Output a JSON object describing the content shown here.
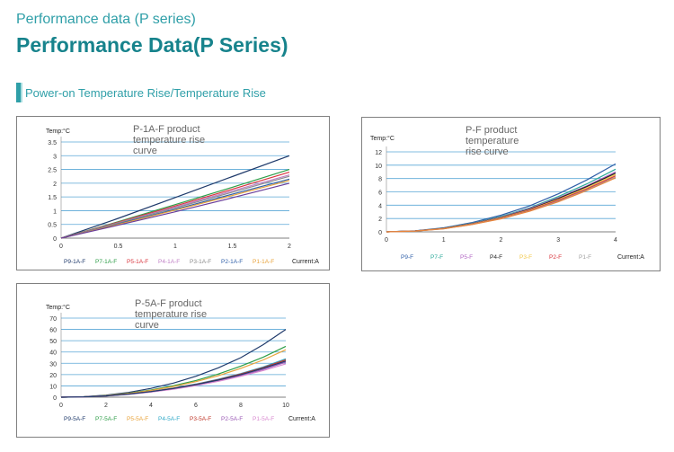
{
  "page": {
    "eyebrow": "Performance data (P series)",
    "title": "Performance Data(P Series)",
    "section": "Power-on Temperature Rise/Temperature Rise"
  },
  "chart_data": [
    {
      "type": "line",
      "title": "P-1A-F product temperature rise curve",
      "ylabel": "Temp:°C",
      "xlabel": "Current:A",
      "xlim": [
        0,
        2
      ],
      "ylim": [
        0,
        3.5
      ],
      "xticks": [
        "0",
        "0.5",
        "1",
        "1.5",
        "2"
      ],
      "yticks": [
        "0",
        "0.5",
        "1",
        "1.5",
        "2",
        "2.5",
        "3",
        "3.5"
      ],
      "grid": "horizontal",
      "legend_position": "bottom",
      "x": [
        0,
        0.5,
        1,
        1.5,
        2
      ],
      "series": [
        {
          "name": "P9-1A-F",
          "color": "#1f3a6b",
          "values": [
            0,
            0.72,
            1.48,
            2.24,
            3.0
          ]
        },
        {
          "name": "P7-1A-F",
          "color": "#2e9e48",
          "values": [
            0,
            0.6,
            1.22,
            1.85,
            2.5
          ]
        },
        {
          "name": "P5-1A-F",
          "color": "#d9363e",
          "values": [
            0,
            0.58,
            1.17,
            1.78,
            2.4
          ]
        },
        {
          "name": "P4-1A-F",
          "color": "#c080c6",
          "values": [
            0,
            0.56,
            1.13,
            1.72,
            2.3
          ]
        },
        {
          "name": "P3-1A-F",
          "color": "#8c8c8c",
          "values": [
            0,
            0.55,
            1.1,
            1.67,
            2.25
          ]
        },
        {
          "name": "P2-1A-F",
          "color": "#2f5fa8",
          "values": [
            0,
            0.52,
            1.05,
            1.6,
            2.15
          ]
        },
        {
          "name": "P1-1A-F",
          "color": "#e8a33a",
          "values": [
            0,
            0.5,
            1.02,
            1.55,
            2.1
          ]
        },
        {
          "color": "#6a3d9a",
          "values": [
            0,
            0.47,
            0.96,
            1.47,
            2.0
          ]
        }
      ]
    },
    {
      "type": "line",
      "title": "P-F product temperature rise curve",
      "ylabel": "Temp:°C",
      "xlabel": "Current:A",
      "xlim": [
        0,
        4
      ],
      "ylim": [
        0,
        12
      ],
      "xticks": [
        "0",
        "1",
        "2",
        "3",
        "4"
      ],
      "yticks": [
        "0",
        "2",
        "4",
        "6",
        "8",
        "10",
        "12"
      ],
      "grid": "horizontal",
      "legend_position": "bottom",
      "x": [
        0,
        0.5,
        1,
        1.5,
        2,
        2.5,
        3,
        3.5,
        4
      ],
      "series": [
        {
          "name": "P9-F",
          "color": "#2f5fa8",
          "values": [
            0,
            0.15,
            0.6,
            1.4,
            2.5,
            3.9,
            5.7,
            7.8,
            10.2
          ]
        },
        {
          "name": "P7-F",
          "color": "#2aa898",
          "values": [
            0,
            0.14,
            0.55,
            1.3,
            2.3,
            3.6,
            5.3,
            7.2,
            9.4
          ]
        },
        {
          "name": "P5-F",
          "color": "#b266c4",
          "values": [
            0,
            0.13,
            0.53,
            1.25,
            2.2,
            3.5,
            5.1,
            6.9,
            9.0
          ]
        },
        {
          "name": "P4-F",
          "color": "#222222",
          "values": [
            0,
            0.13,
            0.52,
            1.22,
            2.15,
            3.4,
            5.0,
            6.8,
            8.8
          ]
        },
        {
          "name": "P3-F",
          "color": "#f2c94c",
          "values": [
            0,
            0.12,
            0.5,
            1.18,
            2.1,
            3.3,
            4.85,
            6.6,
            8.6
          ]
        },
        {
          "name": "P2-F",
          "color": "#d9363e",
          "values": [
            0,
            0.12,
            0.49,
            1.15,
            2.05,
            3.25,
            4.75,
            6.45,
            8.4
          ]
        },
        {
          "name": "P1-F",
          "color": "#a0a0a0",
          "values": [
            0,
            0.11,
            0.47,
            1.12,
            2.0,
            3.15,
            4.6,
            6.3,
            8.2
          ]
        },
        {
          "color": "#e8843a",
          "values": [
            0,
            0.11,
            0.46,
            1.1,
            1.95,
            3.1,
            4.5,
            6.2,
            8.1
          ]
        }
      ]
    },
    {
      "type": "line",
      "title": "P-5A-F product temperature rise curve",
      "ylabel": "Temp:°C",
      "xlabel": "Current:A",
      "xlim": [
        0,
        10
      ],
      "ylim": [
        0,
        70
      ],
      "xticks": [
        "0",
        "2",
        "4",
        "6",
        "8",
        "10"
      ],
      "yticks": [
        "0",
        "10",
        "20",
        "30",
        "40",
        "50",
        "60",
        "70"
      ],
      "grid": "horizontal",
      "legend_position": "bottom",
      "x": [
        0,
        1,
        2,
        3,
        4,
        5,
        6,
        7,
        8,
        9,
        10
      ],
      "series": [
        {
          "name": "P9-5A-F",
          "color": "#1f3a6b",
          "values": [
            0,
            0.4,
            1.8,
            4.2,
            7.8,
            12.5,
            18.5,
            26,
            35,
            46.5,
            60
          ]
        },
        {
          "name": "P7-5A-F",
          "color": "#2e9e48",
          "values": [
            0,
            0.35,
            1.5,
            3.5,
            6.4,
            10.2,
            14.8,
            20.5,
            27.5,
            35.5,
            45
          ]
        },
        {
          "name": "P5-5A-F",
          "color": "#e8a33a",
          "values": [
            0,
            0.33,
            1.4,
            3.3,
            6.0,
            9.5,
            13.8,
            19,
            25.5,
            33,
            42
          ]
        },
        {
          "name": "P4-5A-F",
          "color": "#2fa9c8",
          "values": [
            0,
            0.3,
            1.2,
            2.8,
            5.1,
            8.0,
            11.6,
            15.9,
            20.9,
            26.8,
            34
          ]
        },
        {
          "name": "P3-5A-F",
          "color": "#c0392b",
          "values": [
            0,
            0.3,
            1.2,
            2.75,
            5.0,
            7.9,
            11.4,
            15.6,
            20.5,
            26.2,
            33
          ]
        },
        {
          "name": "P2-5A-F",
          "color": "#9b59b6",
          "values": [
            0,
            0.28,
            1.1,
            2.6,
            4.7,
            7.4,
            10.7,
            14.6,
            19.2,
            24.6,
            31
          ]
        },
        {
          "name": "P1-5A-F",
          "color": "#d98ad0",
          "values": [
            0,
            0.27,
            1.05,
            2.5,
            4.5,
            7.1,
            10.3,
            14.1,
            18.5,
            23.6,
            29.5
          ]
        },
        {
          "color": "#1f3a6b",
          "values": [
            0,
            0.3,
            1.15,
            2.7,
            4.9,
            7.7,
            11.1,
            15.2,
            20,
            25.6,
            32
          ]
        }
      ]
    }
  ]
}
